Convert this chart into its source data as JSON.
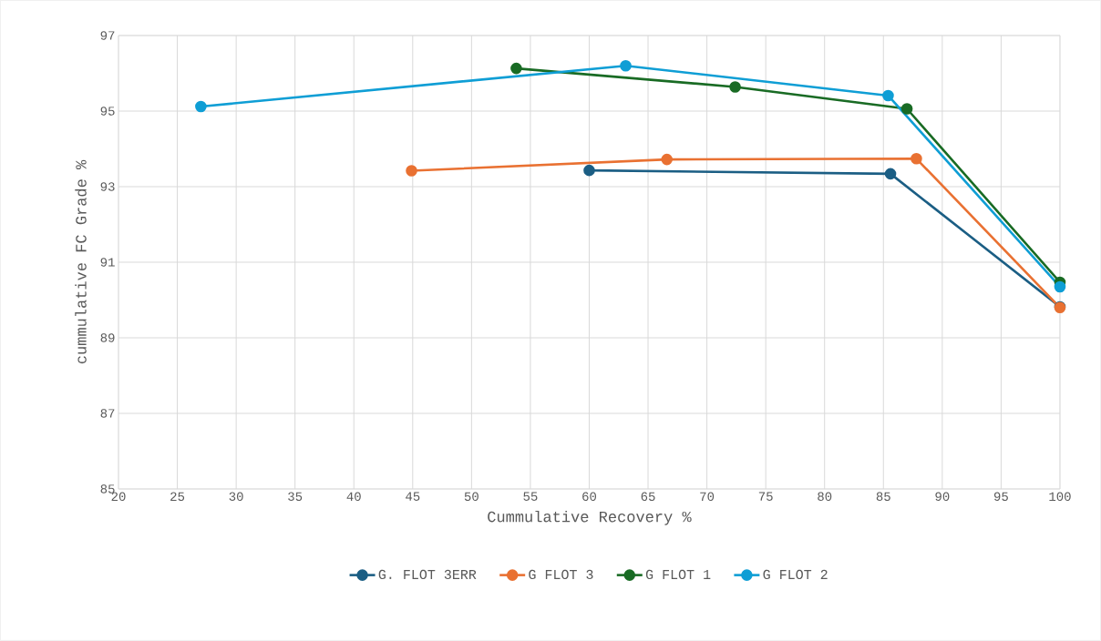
{
  "chart_data": {
    "type": "line",
    "xlabel": "Cummulative Recovery %",
    "ylabel": "cummulative FC Grade %",
    "xlim": [
      20,
      100
    ],
    "xticks": [
      20,
      25,
      30,
      35,
      40,
      45,
      50,
      55,
      60,
      65,
      70,
      75,
      80,
      85,
      90,
      95,
      100
    ],
    "ylim": [
      85,
      97
    ],
    "yticks": [
      85,
      87,
      89,
      91,
      93,
      95,
      97
    ],
    "grid": true,
    "legend": "bottom",
    "marker": "circle",
    "line_style": "solid",
    "series": [
      {
        "name": "G. FLOT 3ERR",
        "color": "#1b5e84",
        "x": [
          60.0,
          85.6,
          100
        ],
        "values": [
          93.43,
          93.34,
          89.82
        ]
      },
      {
        "name": "G FLOT 3",
        "color": "#e97132",
        "x": [
          44.9,
          66.6,
          87.8,
          100
        ],
        "values": [
          93.42,
          93.72,
          93.74,
          89.8
        ]
      },
      {
        "name": "G FLOT 1",
        "color": "#196b24",
        "x": [
          53.8,
          72.4,
          87.0,
          100
        ],
        "values": [
          96.13,
          95.64,
          95.06,
          90.47
        ]
      },
      {
        "name": "G FLOT 2",
        "color": "#0f9ed5",
        "x": [
          27.0,
          63.1,
          85.4,
          100
        ],
        "values": [
          95.12,
          96.2,
          95.41,
          90.35
        ]
      }
    ]
  }
}
